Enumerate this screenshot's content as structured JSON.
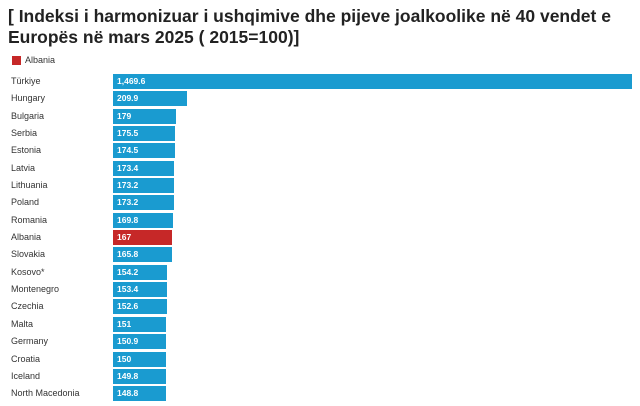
{
  "title": "[ Indeksi i harmonizuar i ushqimive dhe pijeve joalkoolike në 40 vendet e Europës në mars 2025 ( 2015=100)]",
  "legend": {
    "label": "Albania",
    "color": "#c62828"
  },
  "colors": {
    "default_bar": "#1a9bd0",
    "highlight_bar": "#c62828"
  },
  "chart_data": {
    "type": "bar",
    "orientation": "horizontal",
    "title": "[ Indeksi i harmonizuar i ushqimive dhe pijeve joalkoolike në 40 vendet e Europës në mars 2025 ( 2015=100)]",
    "highlight": "Albania",
    "legend": [
      "Albania"
    ],
    "xlim": [
      0,
      1469.6
    ],
    "categories": [
      "Türkiye",
      "Hungary",
      "Bulgaria",
      "Serbia",
      "Estonia",
      "Latvia",
      "Lithuania",
      "Poland",
      "Romania",
      "Albania",
      "Slovakia",
      "Kosovo*",
      "Montenegro",
      "Czechia",
      "Malta",
      "Germany",
      "Croatia",
      "Iceland",
      "North Macedonia"
    ],
    "values": [
      1469.6,
      209.9,
      179,
      175.5,
      174.5,
      173.4,
      173.2,
      173.2,
      169.8,
      167,
      165.8,
      154.2,
      153.4,
      152.6,
      151,
      150.9,
      150,
      149.8,
      148.8
    ],
    "value_labels": [
      "1,469.6",
      "209.9",
      "179",
      "175.5",
      "174.5",
      "173.4",
      "173.2",
      "173.2",
      "169.8",
      "167",
      "165.8",
      "154.2",
      "153.4",
      "152.6",
      "151",
      "150.9",
      "150",
      "149.8",
      "148.8"
    ]
  }
}
